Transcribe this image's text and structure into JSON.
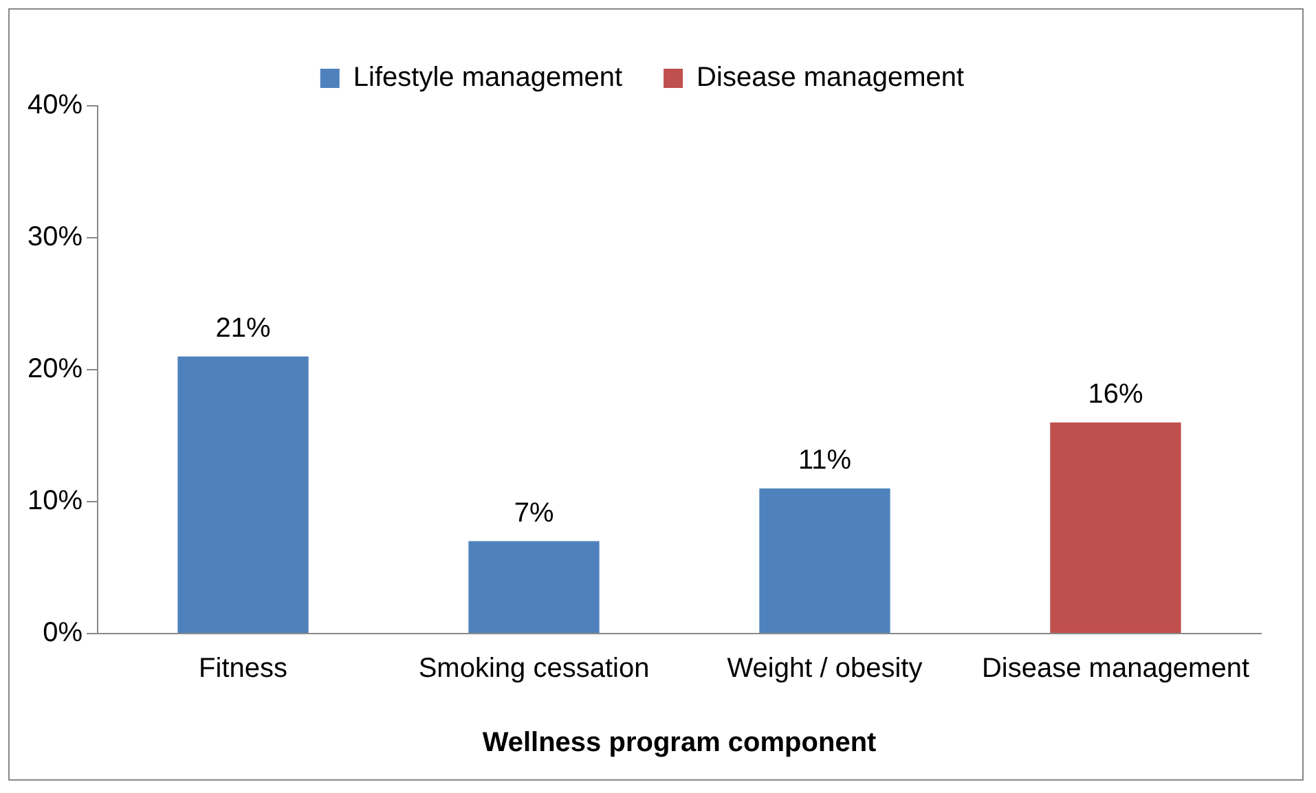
{
  "chart_data": {
    "type": "bar",
    "xlabel": "Wellness program component",
    "categories": [
      "Fitness",
      "Smoking cessation",
      "Weight / obesity",
      "Disease management"
    ],
    "series": [
      {
        "name": "Lifestyle management",
        "color": "#4f81bd",
        "values": [
          21,
          7,
          11,
          null
        ],
        "value_labels": [
          "21%",
          "7%",
          "11%",
          null
        ]
      },
      {
        "name": "Disease management",
        "color": "#c0504d",
        "values": [
          null,
          null,
          null,
          16
        ],
        "value_labels": [
          null,
          null,
          null,
          "16%"
        ]
      }
    ],
    "ylim": [
      0,
      40
    ],
    "yticks": [
      {
        "value": 0,
        "label": "0%"
      },
      {
        "value": 10,
        "label": "10%"
      },
      {
        "value": 20,
        "label": "20%"
      },
      {
        "value": 30,
        "label": "30%"
      },
      {
        "value": 40,
        "label": "40%"
      }
    ],
    "legend": "top",
    "grid": false
  }
}
